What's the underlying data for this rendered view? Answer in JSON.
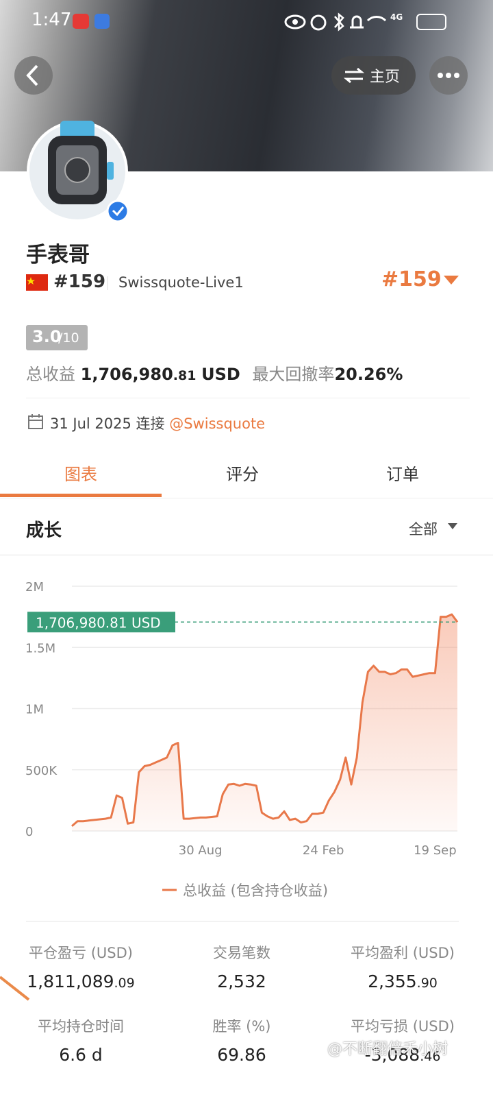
{
  "status_bar": {
    "time": "1:47",
    "network": "4G"
  },
  "header": {
    "home_button": "主页"
  },
  "profile": {
    "name": "手表哥",
    "rank": "#159",
    "account": "Swissquote-Live1",
    "rank_badge": "#159",
    "score": "3.0",
    "score_max": "/10",
    "total_profit_label": "总收益",
    "total_profit_main": "1,706,980",
    "total_profit_decimals": ".81",
    "total_profit_unit": "USD",
    "drawdown_label": "最大回撤率",
    "drawdown": "20.26%",
    "connected_date": "31 Jul 2025",
    "connected_label": "连接",
    "broker": "@Swissquote"
  },
  "tabs": [
    "图表",
    "评分",
    "订单"
  ],
  "section": {
    "title": "成长",
    "range": "全部"
  },
  "chart_data": {
    "type": "line",
    "categories": [
      null,
      null,
      null,
      null,
      null,
      null,
      null,
      null,
      null,
      null,
      null,
      null,
      null,
      null,
      null,
      null,
      null,
      null,
      null,
      null,
      null,
      null,
      null,
      "30 Aug",
      null,
      null,
      null,
      null,
      null,
      null,
      null,
      null,
      null,
      null,
      null,
      null,
      null,
      null,
      null,
      null,
      null,
      null,
      null,
      null,
      null,
      "24 Feb",
      null,
      null,
      null,
      null,
      null,
      null,
      null,
      null,
      null,
      null,
      null,
      null,
      null,
      null,
      null,
      null,
      null,
      null,
      null,
      "19 Sep",
      null,
      null,
      null,
      null
    ],
    "series": [
      {
        "name": "总收益 (包含持仓收益)",
        "color": "#e8784a",
        "values": [
          40000,
          80000,
          80000,
          85000,
          90000,
          95000,
          100000,
          110000,
          290000,
          270000,
          60000,
          70000,
          480000,
          530000,
          540000,
          560000,
          580000,
          600000,
          700000,
          720000,
          100000,
          100000,
          105000,
          110000,
          110000,
          115000,
          120000,
          300000,
          380000,
          385000,
          370000,
          385000,
          380000,
          370000,
          150000,
          120000,
          100000,
          110000,
          160000,
          90000,
          100000,
          70000,
          80000,
          140000,
          140000,
          150000,
          250000,
          320000,
          420000,
          600000,
          380000,
          600000,
          1050000,
          1300000,
          1350000,
          1300000,
          1300000,
          1280000,
          1290000,
          1320000,
          1320000,
          1260000,
          1270000,
          1280000,
          1290000,
          1290000,
          1750000,
          1750000,
          1770000,
          1706980.81
        ]
      }
    ],
    "ylim": [
      0,
      2000000
    ],
    "yticks": [
      0,
      {
        "value": 500000,
        "label": "500K"
      },
      {
        "value": 1000000,
        "label": "1M"
      },
      {
        "value": 1500000,
        "label": "1.5M"
      },
      {
        "value": 2000000,
        "label": "2M"
      }
    ],
    "grid": true,
    "marker": {
      "value": 1706980.81,
      "label": "1,706,980.81 USD",
      "color": "#3a9e7a"
    }
  },
  "stats": [
    {
      "label": "平仓盈亏 (USD)",
      "main": "1,811,089",
      "decimals": ".09"
    },
    {
      "label": "交易笔数",
      "main": "2,532"
    },
    {
      "label": "平均盈利 (USD)",
      "main": "2,355",
      "decimals": ".90"
    },
    {
      "label": "平均持仓时间",
      "main": "6.6 d"
    },
    {
      "label": "胜率 (%)",
      "main": "69.86"
    },
    {
      "label": "平均亏损 (USD)",
      "main": "-3,088",
      "decimals": ".46"
    }
  ],
  "watermark": "@不断翻倍禾小树"
}
